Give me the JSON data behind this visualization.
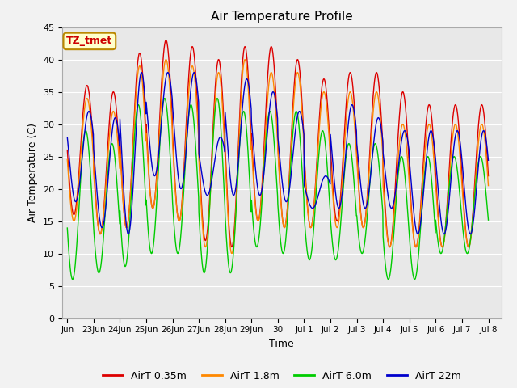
{
  "title": "Air Temperature Profile",
  "xlabel": "Time",
  "ylabel": "Air Temperature (C)",
  "ylim": [
    0,
    45
  ],
  "background_color": "#f2f2f2",
  "plot_bg_color": "#e8e8e8",
  "grid_color": "#ffffff",
  "label_box_text": "TZ_tmet",
  "label_box_facecolor": "#ffffcc",
  "label_box_edgecolor": "#bb8800",
  "label_box_textcolor": "#cc0000",
  "xtick_labels": [
    "Jun",
    "23Jun",
    "24Jun",
    "25Jun",
    "26Jun",
    "27Jun",
    "28Jun",
    "29Jun",
    "30",
    "Jul 1",
    "Jul 2",
    "Jul 3",
    "Jul 4",
    "Jul 5",
    "Jul 6",
    "Jul 7",
    "Jul 8"
  ],
  "xtick_positions": [
    0,
    1,
    2,
    3,
    4,
    5,
    6,
    7,
    8,
    9,
    10,
    11,
    12,
    13,
    14,
    15,
    16
  ],
  "ytick_positions": [
    0,
    5,
    10,
    15,
    20,
    25,
    30,
    35,
    40,
    45
  ],
  "legend_entries": [
    {
      "label": "AirT 0.35m",
      "color": "#dd0000"
    },
    {
      "label": "AirT 1.8m",
      "color": "#ff8800"
    },
    {
      "label": "AirT 6.0m",
      "color": "#00cc00"
    },
    {
      "label": "AirT 22m",
      "color": "#0000cc"
    }
  ],
  "diurnal_peaks_035": [
    36,
    35,
    41,
    43,
    42,
    40,
    42,
    42,
    40,
    37,
    38,
    38,
    35,
    33,
    33
  ],
  "diurnal_peaks_18": [
    34,
    32,
    39,
    40,
    39,
    38,
    40,
    38,
    38,
    35,
    35,
    35,
    30,
    30,
    30
  ],
  "diurnal_peaks_60": [
    29,
    27,
    33,
    34,
    33,
    34,
    32,
    32,
    32,
    29,
    27,
    27,
    25,
    25,
    25
  ],
  "diurnal_peaks_22": [
    32,
    31,
    38,
    38,
    38,
    28,
    37,
    35,
    32,
    22,
    33,
    31,
    29,
    29,
    29
  ],
  "diurnal_mins_035": [
    16,
    13,
    14,
    17,
    15,
    12,
    11,
    15,
    14,
    14,
    15,
    14,
    11,
    11,
    11
  ],
  "diurnal_mins_18": [
    15,
    13,
    14,
    17,
    15,
    11,
    10,
    15,
    14,
    14,
    14,
    14,
    11,
    11,
    11
  ],
  "diurnal_mins_60": [
    6,
    7,
    8,
    10,
    10,
    7,
    7,
    11,
    10,
    9,
    9,
    10,
    6,
    6,
    10
  ],
  "diurnal_mins_22": [
    18,
    14,
    13,
    22,
    20,
    19,
    19,
    19,
    18,
    17,
    17,
    17,
    17,
    13,
    13
  ],
  "n_points_per_day": 96
}
